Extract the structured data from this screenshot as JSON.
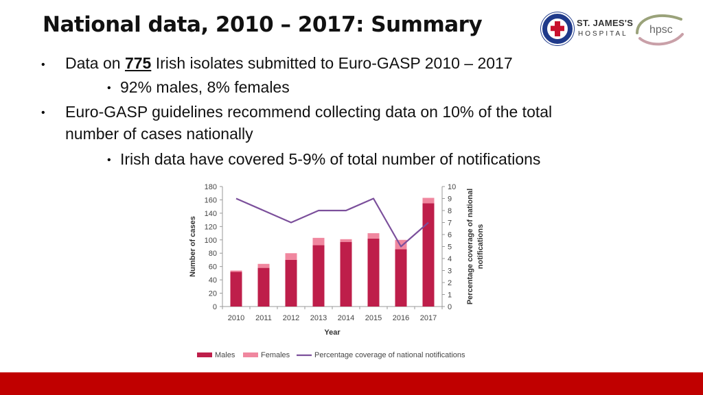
{
  "slide": {
    "title": "National data, 2010 – 2017: Summary",
    "logos": {
      "stjames_line1": "ST. JAMES'S",
      "stjames_line2": "HOSPITAL",
      "hpsc": "hpsc"
    },
    "bullets": {
      "b1_prefix": "Data on ",
      "b1_number": "775",
      "b1_suffix": " Irish isolates submitted to Euro-GASP 2010 – 2017",
      "b1_sub": "92% males, 8% females",
      "b2_line1": "Euro-GASP guidelines recommend collecting data on 10% of the total",
      "b2_line2": "number of cases nationally",
      "b2_sub": "Irish data have covered 5-9% of total number of notifications"
    },
    "colors": {
      "males": "#be1e4a",
      "females": "#f0879f",
      "line": "#7b4f9b",
      "footer": "#c00000"
    }
  },
  "chart_data": {
    "type": "bar",
    "categories": [
      "2010",
      "2011",
      "2012",
      "2013",
      "2014",
      "2015",
      "2016",
      "2017"
    ],
    "series": [
      {
        "name": "Males",
        "type": "stacked-bar",
        "axis": "left",
        "values": [
          52,
          58,
          70,
          92,
          97,
          102,
          86,
          155
        ]
      },
      {
        "name": "Females",
        "type": "stacked-bar",
        "axis": "left",
        "values": [
          2,
          6,
          10,
          11,
          4,
          8,
          14,
          8
        ]
      },
      {
        "name": "Percentage coverage of national notifications",
        "type": "line",
        "axis": "right",
        "values": [
          9,
          8,
          7,
          8,
          8,
          9,
          5,
          7
        ]
      }
    ],
    "xlabel": "Year",
    "ylabel": "Number of cases",
    "y2label_line1": "Percentage coverage of national",
    "y2label_line2": "notifications",
    "ylim": [
      0,
      180
    ],
    "yticks": [
      0,
      20,
      40,
      60,
      80,
      100,
      120,
      140,
      160,
      180
    ],
    "y2lim": [
      0,
      10
    ],
    "y2ticks": [
      0,
      1,
      2,
      3,
      4,
      5,
      6,
      7,
      8,
      9,
      10
    ],
    "legend_position": "bottom",
    "grid": false
  }
}
